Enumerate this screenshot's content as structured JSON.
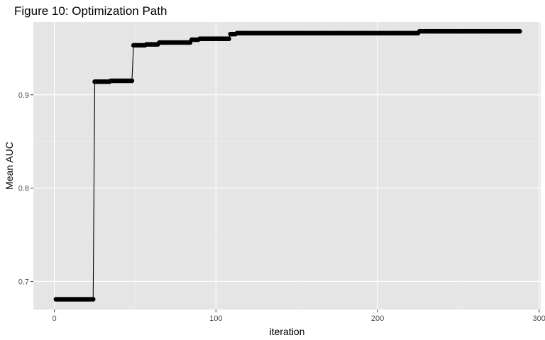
{
  "chart_data": {
    "type": "line",
    "title": "Figure 10: Optimization Path",
    "xlabel": "iteration",
    "ylabel": "Mean AUC",
    "xlim": [
      -13,
      301
    ],
    "ylim": [
      0.67,
      0.978
    ],
    "xticks": [
      0,
      100,
      200,
      300
    ],
    "yticks": [
      0.7,
      0.8,
      0.9
    ],
    "ytick_labels": [
      "0.7",
      "0.8",
      "0.9"
    ],
    "grid": true,
    "legend": "none",
    "series": [
      {
        "steps": [
          {
            "x_start": 1,
            "x_end": 24,
            "y": 0.681
          },
          {
            "x_start": 25,
            "x_end": 34,
            "y": 0.914
          },
          {
            "x_start": 35,
            "x_end": 48,
            "y": 0.915
          },
          {
            "x_start": 49,
            "x_end": 56,
            "y": 0.953
          },
          {
            "x_start": 57,
            "x_end": 64,
            "y": 0.954
          },
          {
            "x_start": 65,
            "x_end": 84,
            "y": 0.956
          },
          {
            "x_start": 85,
            "x_end": 89,
            "y": 0.959
          },
          {
            "x_start": 90,
            "x_end": 108,
            "y": 0.96
          },
          {
            "x_start": 109,
            "x_end": 112,
            "y": 0.965
          },
          {
            "x_start": 113,
            "x_end": 225,
            "y": 0.966
          },
          {
            "x_start": 226,
            "x_end": 288,
            "y": 0.968
          }
        ]
      }
    ]
  }
}
